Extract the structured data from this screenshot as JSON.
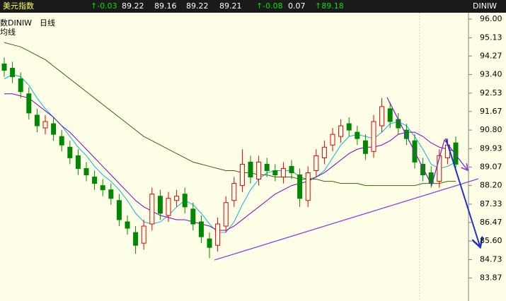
{
  "quote_bar": {
    "name": "美元指数",
    "fields": [
      {
        "text": "↑-0.03",
        "color": "#00e000"
      },
      {
        "text": "89.22",
        "color": "#ffffff"
      },
      {
        "text": "89.16",
        "color": "#ffffff"
      },
      {
        "text": "89.22",
        "color": "#ffffff"
      },
      {
        "text": "89.21",
        "color": "#ffffff"
      },
      {
        "text": "↑-0.08",
        "color": "#00e000"
      },
      {
        "text": "0.07",
        "color": "#ffffff"
      },
      {
        "text": "↑89.18",
        "color": "#00e000"
      }
    ],
    "symbol": "DINIW"
  },
  "chart_data": {
    "type": "candlestick",
    "title": "数DINIW",
    "subtitle": "日线",
    "annotations": [
      "均线"
    ],
    "up_color": "#e00000",
    "down_color": "#008800",
    "categories": [
      null,
      null,
      null,
      null,
      null,
      null,
      null,
      null,
      null,
      null,
      null,
      null,
      null,
      null,
      null,
      null,
      null,
      null,
      null,
      null,
      null,
      null,
      null,
      null,
      null,
      null,
      null,
      null,
      null,
      null,
      null,
      null,
      null,
      null,
      null,
      null,
      null,
      null,
      null,
      null,
      null,
      null,
      null,
      null,
      null,
      null,
      null,
      null,
      null,
      null,
      null,
      null,
      null,
      null,
      null,
      null
    ],
    "open": [
      93.9,
      93.7,
      93.2,
      92.5,
      91.5,
      90.9,
      91.1,
      90.5,
      90.0,
      89.6,
      89.0,
      88.6,
      88.2,
      88.0,
      87.5,
      86.5,
      86.0,
      85.5,
      86.4,
      87.7,
      86.8,
      87.5,
      87.8,
      87.1,
      86.5,
      85.7,
      85.4,
      86.3,
      87.5,
      88.2,
      89.3,
      88.5,
      89.2,
      88.9,
      88.6,
      89.1,
      88.7,
      87.5,
      88.9,
      89.5,
      90.1,
      90.5,
      91.1,
      90.7,
      90.3,
      89.8,
      91.0,
      91.8,
      91.3,
      90.8,
      90.3,
      89.2,
      88.8,
      88.4,
      89.5,
      90.2
    ],
    "high": [
      94.2,
      94.0,
      93.5,
      92.8,
      91.8,
      91.5,
      91.4,
      90.8,
      90.3,
      89.9,
      89.3,
      88.9,
      88.5,
      88.3,
      87.8,
      86.8,
      86.3,
      86.6,
      88.1,
      88.0,
      87.9,
      88.0,
      88.1,
      87.4,
      86.8,
      86.0,
      86.7,
      87.7,
      88.6,
      89.9,
      89.6,
      89.6,
      89.5,
      89.2,
      89.3,
      89.4,
      89.0,
      89.1,
      89.9,
      90.3,
      90.9,
      91.3,
      91.4,
      91.0,
      90.6,
      91.5,
      92.3,
      92.1,
      91.6,
      91.1,
      90.6,
      89.5,
      89.1,
      89.9,
      90.4,
      90.5
    ],
    "low": [
      93.3,
      93.0,
      92.3,
      91.3,
      90.7,
      90.6,
      90.3,
      89.8,
      89.2,
      88.7,
      88.4,
      88.0,
      87.7,
      87.3,
      86.3,
      85.9,
      85.0,
      85.2,
      86.1,
      86.6,
      86.5,
      87.2,
      86.9,
      86.1,
      85.5,
      84.8,
      85.1,
      86.0,
      87.2,
      87.9,
      88.3,
      88.2,
      88.6,
      88.4,
      88.3,
      88.5,
      87.2,
      87.2,
      88.6,
      89.2,
      89.8,
      90.2,
      90.5,
      90.1,
      89.4,
      89.5,
      90.7,
      90.9,
      90.6,
      90.1,
      89.0,
      88.4,
      88.1,
      88.1,
      89.2,
      89.0
    ],
    "close": [
      93.6,
      93.3,
      92.6,
      91.6,
      91.0,
      91.2,
      90.6,
      90.1,
      89.5,
      89.0,
      88.7,
      88.3,
      88.0,
      87.6,
      86.6,
      86.2,
      85.4,
      86.3,
      87.8,
      86.9,
      87.6,
      87.7,
      87.2,
      86.4,
      85.8,
      85.3,
      86.4,
      87.4,
      88.3,
      89.2,
      88.6,
      89.3,
      88.9,
      88.7,
      89.0,
      88.8,
      87.6,
      88.8,
      89.6,
      90.0,
      90.6,
      91.0,
      90.8,
      90.4,
      89.7,
      91.2,
      91.9,
      91.2,
      90.9,
      90.4,
      89.3,
      88.7,
      88.3,
      89.6,
      90.1,
      89.2
    ],
    "series": [
      {
        "color": "#00b8d8",
        "values": [
          93.2,
          93.4,
          93.3,
          92.9,
          92.3,
          91.8,
          91.4,
          91.0,
          90.5,
          90.0,
          89.6,
          89.1,
          88.7,
          88.4,
          88.0,
          87.5,
          86.9,
          86.5,
          86.4,
          86.5,
          86.8,
          87.2,
          87.5,
          87.3,
          86.9,
          86.4,
          86.0,
          86.0,
          86.5,
          87.3,
          88.0,
          88.5,
          88.8,
          88.9,
          88.9,
          88.9,
          88.6,
          88.5,
          88.6,
          88.9,
          89.5,
          90.1,
          90.5,
          90.6,
          90.5,
          90.4,
          90.7,
          91.1,
          91.2,
          91.0,
          90.5,
          89.9,
          89.2,
          89.0,
          89.1,
          89.3
        ]
      },
      {
        "color": "#8000c0",
        "values": [
          92.5,
          92.5,
          92.4,
          92.3,
          92.0,
          91.7,
          91.4,
          91.0,
          90.7,
          90.3,
          89.9,
          89.5,
          89.1,
          88.7,
          88.3,
          87.9,
          87.5,
          87.2,
          87.0,
          86.8,
          86.7,
          86.6,
          86.6,
          86.5,
          86.4,
          86.3,
          86.1,
          86.1,
          86.3,
          86.6,
          86.9,
          87.2,
          87.5,
          87.8,
          88.0,
          88.2,
          88.3,
          88.4,
          88.6,
          88.8,
          89.1,
          89.4,
          89.7,
          89.9,
          90.0,
          90.0,
          90.1,
          90.3,
          90.6,
          90.7,
          90.7,
          90.5,
          90.2,
          90.0,
          89.9,
          89.8
        ]
      },
      {
        "color": "#406010",
        "values": [
          94.9,
          94.8,
          94.7,
          94.5,
          94.3,
          94.1,
          93.8,
          93.5,
          93.2,
          92.9,
          92.6,
          92.3,
          92.0,
          91.7,
          91.4,
          91.1,
          90.8,
          90.5,
          90.3,
          90.1,
          89.9,
          89.7,
          89.5,
          89.3,
          89.2,
          89.1,
          89.0,
          88.9,
          88.9,
          88.8,
          88.8,
          88.7,
          88.7,
          88.6,
          88.6,
          88.6,
          88.5,
          88.5,
          88.5,
          88.4,
          88.4,
          88.3,
          88.3,
          88.3,
          88.2,
          88.2,
          88.2,
          88.2,
          88.2,
          88.2,
          88.2,
          88.3,
          88.3,
          88.3,
          88.4,
          88.4
        ]
      }
    ],
    "ylim": [
      82.79,
      96.3
    ],
    "yticks": [
      {
        "value": 96,
        "label": "96.00"
      },
      95.13,
      94.27,
      {
        "value": 93.4,
        "label": "93.40"
      },
      92.53,
      91.67,
      {
        "value": 90.8,
        "label": "90.80"
      },
      89.93,
      89.07,
      {
        "value": 88.2,
        "label": "88.20"
      },
      87.33,
      86.47,
      {
        "value": 85.6,
        "label": "85.60"
      },
      84.73,
      83.87
    ]
  }
}
